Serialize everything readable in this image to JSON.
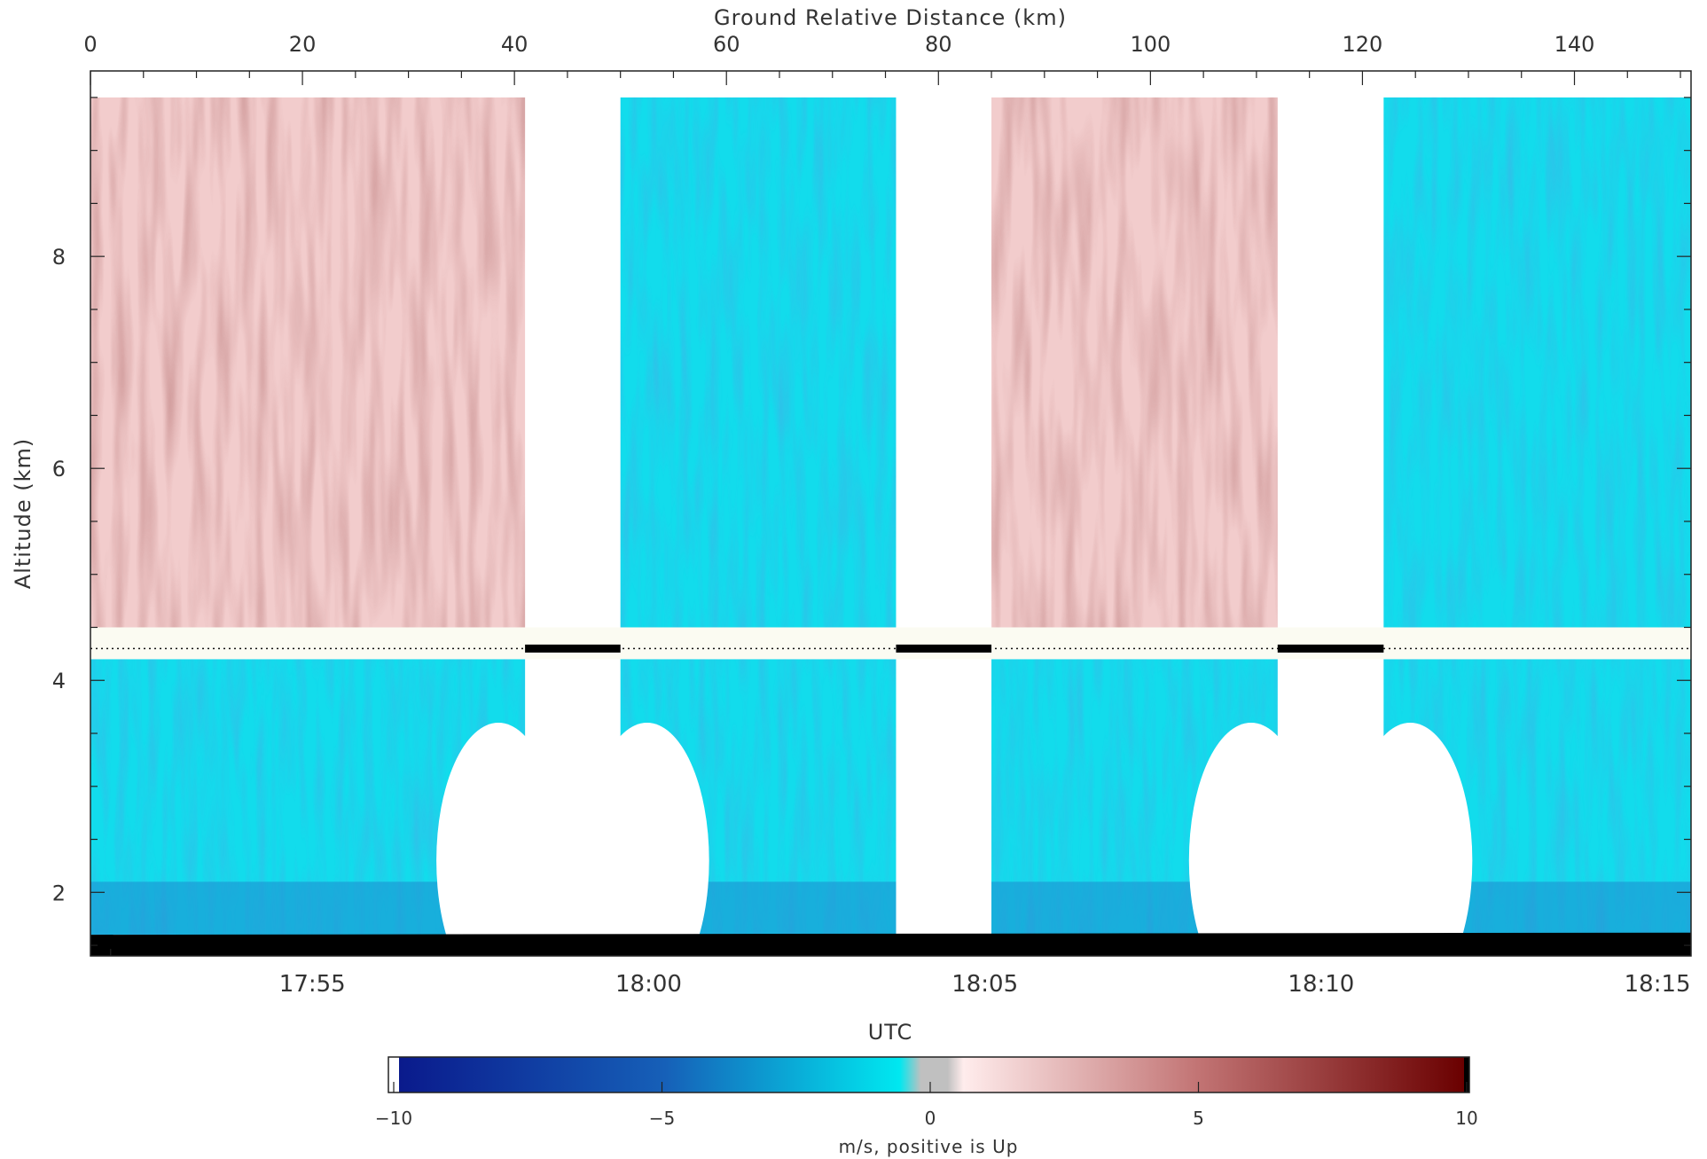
{
  "chart_data": {
    "type": "heatmap",
    "title": "",
    "top_axis": {
      "label": "Ground Relative Distance (km)",
      "range": [
        0,
        151
      ],
      "ticks": [
        0,
        20,
        40,
        60,
        80,
        100,
        120,
        140
      ],
      "tick_labels": [
        "0",
        "20",
        "40",
        "60",
        "80",
        "100",
        "120",
        "140"
      ],
      "minor_step": 5
    },
    "x_axis": {
      "label": "UTC",
      "ticks": [
        "17:55",
        "18:00",
        "18:05",
        "18:10",
        "18:15"
      ],
      "tick_minutes": [
        55,
        60,
        65,
        70,
        75
      ],
      "range_minutes": [
        51.7,
        75.5
      ],
      "minor_step_minutes": 1
    },
    "y_axis": {
      "label": "Altitude (km)",
      "range": [
        1.4,
        9.75
      ],
      "ticks": [
        2,
        4,
        6,
        8
      ],
      "tick_labels": [
        "2",
        "4",
        "6",
        "8"
      ],
      "minor_step": 0.5
    },
    "colorbar": {
      "label": "m/s, positive is Up",
      "range": [
        -10,
        10
      ],
      "ticks": [
        -10,
        -5,
        0,
        5,
        10
      ],
      "tick_labels": [
        "−10",
        "−5",
        "0",
        "5",
        "10"
      ],
      "colors": {
        "min": "#0a1a8c",
        "mid_negative": "#1e8ad0",
        "near_zero_negative": "#00e8f0",
        "zero": "#c0c0c0",
        "near_zero_positive": "#ffecec",
        "mid_positive": "#c27474",
        "max": "#6a0000"
      }
    },
    "aircraft_altitude_km": 4.3,
    "data_gaps_km": [
      [
        41,
        50
      ],
      [
        76,
        85
      ],
      [
        112,
        122
      ]
    ],
    "segments": [
      {
        "x_range_km": [
          0,
          41
        ],
        "upper_mean_sign": "positive",
        "lower_mean_sign": "negative"
      },
      {
        "x_range_km": [
          50,
          76
        ],
        "upper_mean_sign": "negative",
        "lower_mean_sign": "negative"
      },
      {
        "x_range_km": [
          85,
          112
        ],
        "upper_mean_sign": "positive",
        "lower_mean_sign": "negative"
      },
      {
        "x_range_km": [
          122,
          151
        ],
        "upper_mean_sign": "negative",
        "lower_mean_sign": "negative"
      }
    ],
    "surface": "black ground return near 1.5 km",
    "grid": false
  }
}
